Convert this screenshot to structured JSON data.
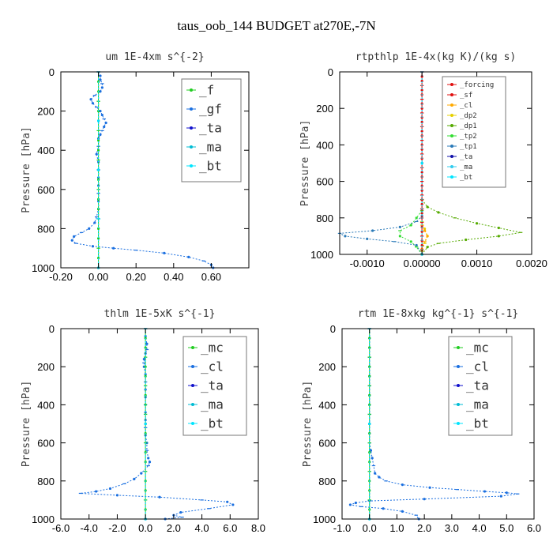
{
  "figure_title": "taus_oob_144  BUDGET at270E,-7N",
  "colors": {
    "green": "#22cc22",
    "blue": "#1a6fe0",
    "navy": "#1010cc",
    "cyan": "#00bcd4",
    "aqua": "#00e5ff",
    "red": "#e01010",
    "orange": "#ffaa00",
    "yellow": "#e6d000",
    "olive": "#55aa00",
    "lime": "#33dd33",
    "steel": "#2a7ab8",
    "dblue": "#1111aa",
    "ltcyan": "#33ccee"
  },
  "chart_data": [
    {
      "type": "line",
      "title": "um   1E-4xm s^{-2}",
      "ylabel": "Pressure [hPa]",
      "xlim": [
        -0.2,
        0.8
      ],
      "ylim": [
        1000,
        0
      ],
      "xticks": [
        -0.2,
        0,
        0.2,
        0.4,
        0.6
      ],
      "xtick_labels": [
        "-0.20",
        "0.00",
        "0.20",
        "0.40",
        "0.60"
      ],
      "yticks": [
        0,
        200,
        400,
        600,
        800,
        1000
      ],
      "ytick_labels": [
        "0",
        "200",
        "400",
        "600",
        "800",
        "1000"
      ],
      "legend": {
        "position": "top-right",
        "entries": [
          "_f",
          "_gf",
          "_ta",
          "_ma",
          "_bt"
        ]
      },
      "series": [
        {
          "name": "_gf",
          "color": "blue",
          "x": [
            0.0,
            0.01,
            0.01,
            0.02,
            0.02,
            0.01,
            -0.02,
            -0.04,
            -0.03,
            -0.01,
            0.01,
            0.02,
            0.03,
            0.04,
            0.03,
            0.02,
            0.01,
            0.0,
            0.0,
            -0.01,
            0.0,
            0.0,
            0.0,
            0.0,
            0.0,
            0.0,
            0.0,
            -0.01,
            -0.02,
            -0.05,
            -0.09,
            -0.13,
            -0.14,
            -0.12,
            -0.03,
            0.08,
            0.2,
            0.35,
            0.48,
            0.56,
            0.6,
            0.61
          ],
          "y": [
            0,
            20,
            40,
            60,
            80,
            100,
            120,
            140,
            160,
            180,
            200,
            220,
            240,
            260,
            280,
            300,
            320,
            340,
            380,
            420,
            460,
            500,
            540,
            580,
            620,
            660,
            700,
            740,
            770,
            800,
            820,
            840,
            860,
            875,
            890,
            900,
            910,
            925,
            945,
            965,
            985,
            1000
          ]
        },
        {
          "name": "_f",
          "color": "green",
          "x": [
            0,
            0,
            0,
            0,
            0,
            0,
            0,
            0,
            0,
            0,
            0,
            0,
            0,
            0,
            0,
            0,
            0,
            0,
            0,
            0,
            0
          ],
          "y": [
            0,
            50,
            100,
            150,
            200,
            250,
            300,
            350,
            400,
            450,
            500,
            550,
            600,
            650,
            700,
            750,
            800,
            850,
            900,
            950,
            1000
          ]
        },
        {
          "name": "_ta",
          "color": "navy",
          "x": [
            0,
            0,
            0,
            0,
            0
          ],
          "y": [
            0,
            250,
            500,
            750,
            1000
          ]
        },
        {
          "name": "_ma",
          "color": "cyan",
          "x": [
            0,
            0,
            0,
            0,
            0
          ],
          "y": [
            0,
            250,
            500,
            750,
            1000
          ]
        },
        {
          "name": "_bt",
          "color": "aqua",
          "x": [
            0,
            0,
            0,
            0,
            0
          ],
          "y": [
            0,
            250,
            500,
            750,
            1000
          ]
        }
      ]
    },
    {
      "type": "line",
      "title": "rtpthlp   1E-4x(kg K)/(kg s)",
      "ylabel": "Pressure [hPa]",
      "xlim": [
        -0.0015,
        0.002
      ],
      "ylim": [
        1000,
        0
      ],
      "xticks": [
        -0.001,
        0,
        0.001,
        0.002
      ],
      "xtick_labels": [
        "-0.0010",
        "0.00000",
        "0.0010",
        "0.0020"
      ],
      "yticks": [
        0,
        200,
        400,
        600,
        800,
        1000
      ],
      "ytick_labels": [
        "0",
        "200",
        "400",
        "600",
        "800",
        "1000"
      ],
      "legend": {
        "position": "top-right",
        "entries": [
          "_forcing",
          "_sf",
          "_cl",
          "_dp2",
          "_dp1",
          "_tp2",
          "_tp1",
          "_ta",
          "_ma",
          "_bt"
        ]
      },
      "series": [
        {
          "name": "_tp1",
          "color": "steel",
          "x": [
            0,
            0,
            0,
            -0.0001,
            -0.0004,
            -0.0009,
            -0.0015,
            -0.0014,
            -0.001,
            -0.0005,
            -0.0001,
            0
          ],
          "y": [
            700,
            760,
            790,
            820,
            850,
            870,
            885,
            900,
            915,
            930,
            950,
            1000
          ]
        },
        {
          "name": "_dp1",
          "color": "olive",
          "x": [
            0,
            0.0001,
            0.0003,
            0.0006,
            0.001,
            0.0014,
            0.0018,
            0.0014,
            0.0008,
            0.0003,
            0.0001,
            0
          ],
          "y": [
            700,
            740,
            770,
            800,
            830,
            855,
            880,
            900,
            920,
            940,
            960,
            1000
          ]
        },
        {
          "name": "_tp2",
          "color": "lime",
          "x": [
            0,
            -0.0001,
            -0.0002,
            -0.0004,
            -0.0004,
            -0.0002,
            -0.0001,
            0
          ],
          "y": [
            760,
            800,
            840,
            870,
            900,
            930,
            960,
            1000
          ]
        },
        {
          "name": "_dp2",
          "color": "yellow",
          "x": [
            0,
            5e-05,
            0.0001,
            5e-05,
            0
          ],
          "y": [
            820,
            860,
            900,
            940,
            980
          ]
        },
        {
          "name": "_cl",
          "color": "orange",
          "x": [
            0,
            5e-05,
            0.0001,
            5e-05,
            0
          ],
          "y": [
            840,
            870,
            900,
            930,
            970
          ]
        },
        {
          "name": "_forcing",
          "color": "red",
          "x": [
            0,
            0,
            0,
            0,
            0,
            0,
            0,
            0,
            0,
            0,
            0,
            0,
            0,
            0,
            0,
            0,
            0,
            0,
            0,
            0,
            0,
            0,
            0,
            0,
            0,
            0,
            0,
            0,
            0,
            0,
            0,
            0,
            0,
            0,
            0,
            0,
            0,
            0,
            0,
            0,
            0
          ],
          "y": [
            0,
            25,
            50,
            75,
            100,
            125,
            150,
            175,
            200,
            225,
            250,
            275,
            300,
            325,
            350,
            375,
            400,
            425,
            450,
            475,
            500,
            525,
            550,
            575,
            600,
            625,
            650,
            675,
            700,
            725,
            750,
            775,
            800,
            825,
            850,
            875,
            900,
            925,
            950,
            975,
            1000
          ]
        },
        {
          "name": "_sf",
          "color": "red",
          "x": [
            0,
            0,
            0
          ],
          "y": [
            0,
            500,
            1000
          ]
        },
        {
          "name": "_ta",
          "color": "dblue",
          "x": [
            0,
            0,
            0
          ],
          "y": [
            0,
            500,
            1000
          ]
        },
        {
          "name": "_ma",
          "color": "ltcyan",
          "x": [
            0,
            0,
            0
          ],
          "y": [
            0,
            500,
            1000
          ]
        },
        {
          "name": "_bt",
          "color": "aqua",
          "x": [
            0,
            0,
            0
          ],
          "y": [
            0,
            500,
            1000
          ]
        }
      ]
    },
    {
      "type": "line",
      "title": "thlm   1E-5xK s^{-1}",
      "ylabel": "Pressure [hPa]",
      "xlim": [
        -6,
        8
      ],
      "ylim": [
        1000,
        0
      ],
      "xticks": [
        -6,
        -4,
        -2,
        0,
        2,
        4,
        6,
        8
      ],
      "xtick_labels": [
        "-6.0",
        "-4.0",
        "-2.0",
        "0.0",
        "2.0",
        "4.0",
        "6.0",
        "8.0"
      ],
      "yticks": [
        0,
        200,
        400,
        600,
        800,
        1000
      ],
      "ytick_labels": [
        "0",
        "200",
        "400",
        "600",
        "800",
        "1000"
      ],
      "legend": {
        "position": "top-right",
        "entries": [
          "_mc",
          "_cl",
          "_ta",
          "_ma",
          "_bt"
        ]
      },
      "series": [
        {
          "name": "_cl",
          "color": "blue",
          "x": [
            0.0,
            0.0,
            0.1,
            0.1,
            0.0,
            -0.1,
            -0.1,
            -0.1,
            0.0,
            0.0,
            0.0,
            0.0,
            0.0,
            0.0,
            0.0,
            0.0,
            0.0,
            0.1,
            0.1,
            0.2,
            0.3,
            0.2,
            -0.3,
            -0.8,
            -1.5,
            -2.5,
            -3.5,
            -4.6,
            -2.0,
            1.0,
            4.0,
            5.8,
            6.2,
            4.5,
            2.5,
            2.0,
            2.6,
            1.4
          ],
          "y": [
            0,
            40,
            80,
            110,
            130,
            160,
            180,
            200,
            240,
            280,
            320,
            360,
            400,
            440,
            480,
            520,
            560,
            600,
            640,
            680,
            700,
            720,
            760,
            790,
            815,
            840,
            855,
            865,
            875,
            885,
            900,
            910,
            925,
            945,
            965,
            980,
            990,
            1000
          ]
        },
        {
          "name": "_mc",
          "color": "green",
          "x": [
            0,
            0,
            0,
            0,
            0,
            0,
            0,
            0,
            0,
            0,
            0,
            0,
            0,
            0,
            0,
            0,
            0,
            0,
            0,
            0,
            0
          ],
          "y": [
            0,
            50,
            100,
            150,
            200,
            250,
            300,
            350,
            400,
            450,
            500,
            550,
            600,
            650,
            700,
            750,
            800,
            850,
            900,
            950,
            1000
          ]
        },
        {
          "name": "_ta",
          "color": "navy",
          "x": [
            0,
            0,
            0
          ],
          "y": [
            0,
            500,
            1000
          ]
        },
        {
          "name": "_ma",
          "color": "cyan",
          "x": [
            0,
            0,
            0
          ],
          "y": [
            0,
            500,
            1000
          ]
        },
        {
          "name": "_bt",
          "color": "aqua",
          "x": [
            0,
            0,
            0
          ],
          "y": [
            0,
            500,
            1000
          ]
        }
      ]
    },
    {
      "type": "line",
      "title": "rtm   1E-8xkg kg^{-1} s^{-1}",
      "ylabel": "Pressure [hPa]",
      "xlim": [
        -1,
        6
      ],
      "ylim": [
        1000,
        0
      ],
      "xticks": [
        -1,
        0,
        1,
        2,
        3,
        4,
        5,
        6
      ],
      "xtick_labels": [
        "-1.0",
        "0.0",
        "1.0",
        "2.0",
        "3.0",
        "4.0",
        "5.0",
        "6.0"
      ],
      "yticks": [
        0,
        200,
        400,
        600,
        800,
        1000
      ],
      "ytick_labels": [
        "0",
        "200",
        "400",
        "600",
        "800",
        "1000"
      ],
      "legend": {
        "position": "top-right",
        "entries": [
          "_mc",
          "_cl",
          "_ta",
          "_ma",
          "_bt"
        ]
      },
      "series": [
        {
          "name": "_cl",
          "color": "blue",
          "x": [
            0.0,
            0.0,
            0.0,
            0.0,
            0.0,
            0.0,
            0.0,
            0.0,
            0.0,
            0.0,
            0.0,
            0.0,
            0.0,
            0.05,
            0.1,
            0.15,
            0.2,
            0.35,
            0.6,
            1.2,
            2.2,
            3.2,
            4.2,
            5.0,
            5.4,
            4.8,
            2.0,
            0.0,
            -0.5,
            -0.7,
            -0.3,
            0.5,
            1.2,
            1.7,
            1.8
          ],
          "y": [
            0,
            50,
            100,
            150,
            200,
            250,
            300,
            350,
            400,
            450,
            500,
            550,
            600,
            640,
            680,
            720,
            760,
            780,
            800,
            820,
            835,
            845,
            855,
            862,
            868,
            880,
            895,
            905,
            915,
            925,
            935,
            945,
            960,
            980,
            1000
          ]
        },
        {
          "name": "_mc",
          "color": "green",
          "x": [
            0,
            0,
            0,
            0,
            0,
            0,
            0,
            0,
            0,
            0,
            0,
            0,
            0,
            0,
            0,
            0,
            0,
            0,
            0,
            0,
            0
          ],
          "y": [
            0,
            50,
            100,
            150,
            200,
            250,
            300,
            350,
            400,
            450,
            500,
            550,
            600,
            650,
            700,
            750,
            800,
            850,
            900,
            950,
            1000
          ]
        },
        {
          "name": "_ta",
          "color": "navy",
          "x": [
            0,
            0,
            0
          ],
          "y": [
            0,
            500,
            1000
          ]
        },
        {
          "name": "_ma",
          "color": "cyan",
          "x": [
            0,
            0,
            0
          ],
          "y": [
            0,
            500,
            1000
          ]
        },
        {
          "name": "_bt",
          "color": "aqua",
          "x": [
            0,
            0,
            0
          ],
          "y": [
            0,
            500,
            1000
          ]
        }
      ]
    }
  ]
}
